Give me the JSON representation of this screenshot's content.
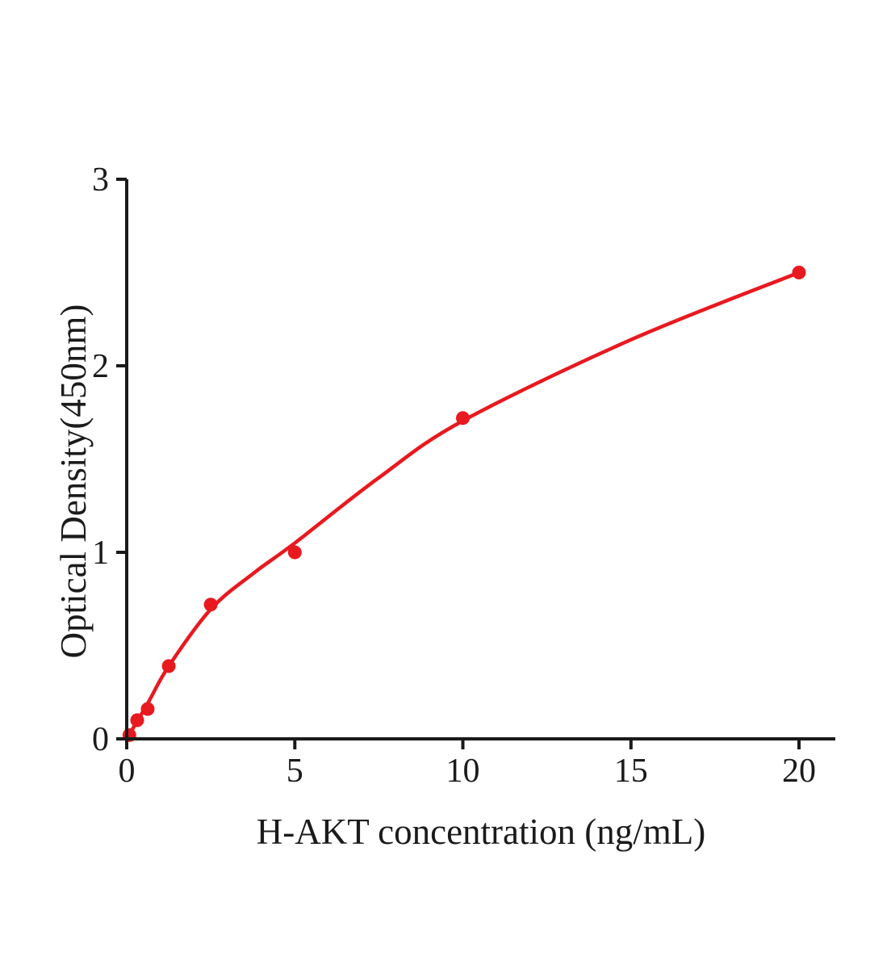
{
  "figure": {
    "background_color": "#ffffff",
    "accent_color": "#e8191f",
    "axis_color": "#1a1a1a",
    "text_color": "#1b1b1b"
  },
  "chart_data": {
    "type": "scatter",
    "title": "",
    "xlabel": "H-AKT concentration (ng/mL)",
    "ylabel": "Optical Density(450nm)",
    "x_ticks": [
      "0",
      "5",
      "10",
      "15",
      "20"
    ],
    "x_tick_values": [
      0,
      5,
      10,
      15,
      20
    ],
    "y_ticks": [
      "0",
      "1",
      "2",
      "3"
    ],
    "y_tick_values": [
      0,
      1,
      2,
      3
    ],
    "xlim": [
      0,
      21.1
    ],
    "ylim": [
      0,
      3
    ],
    "grid": false,
    "legend": false,
    "marker_color": "#e8191f",
    "curve_color": "#e8191f",
    "series": [
      {
        "marker": "circle",
        "points": [
          {
            "x": 0.08,
            "y": 0.02
          },
          {
            "x": 0.3125,
            "y": 0.1
          },
          {
            "x": 0.625,
            "y": 0.16
          },
          {
            "x": 1.25,
            "y": 0.39
          },
          {
            "x": 2.5,
            "y": 0.72
          },
          {
            "x": 5,
            "y": 1.0
          },
          {
            "x": 10,
            "y": 1.72
          },
          {
            "x": 20,
            "y": 2.5
          }
        ]
      }
    ],
    "fit_curve": {
      "points": [
        {
          "x": 0,
          "y": 0.0
        },
        {
          "x": 0.625,
          "y": 0.19
        },
        {
          "x": 1.25,
          "y": 0.39
        },
        {
          "x": 2.5,
          "y": 0.695
        },
        {
          "x": 3.75,
          "y": 0.885
        },
        {
          "x": 5,
          "y": 1.05
        },
        {
          "x": 7.5,
          "y": 1.4
        },
        {
          "x": 10,
          "y": 1.705
        },
        {
          "x": 15,
          "y": 2.14
        },
        {
          "x": 20,
          "y": 2.5
        }
      ]
    }
  }
}
